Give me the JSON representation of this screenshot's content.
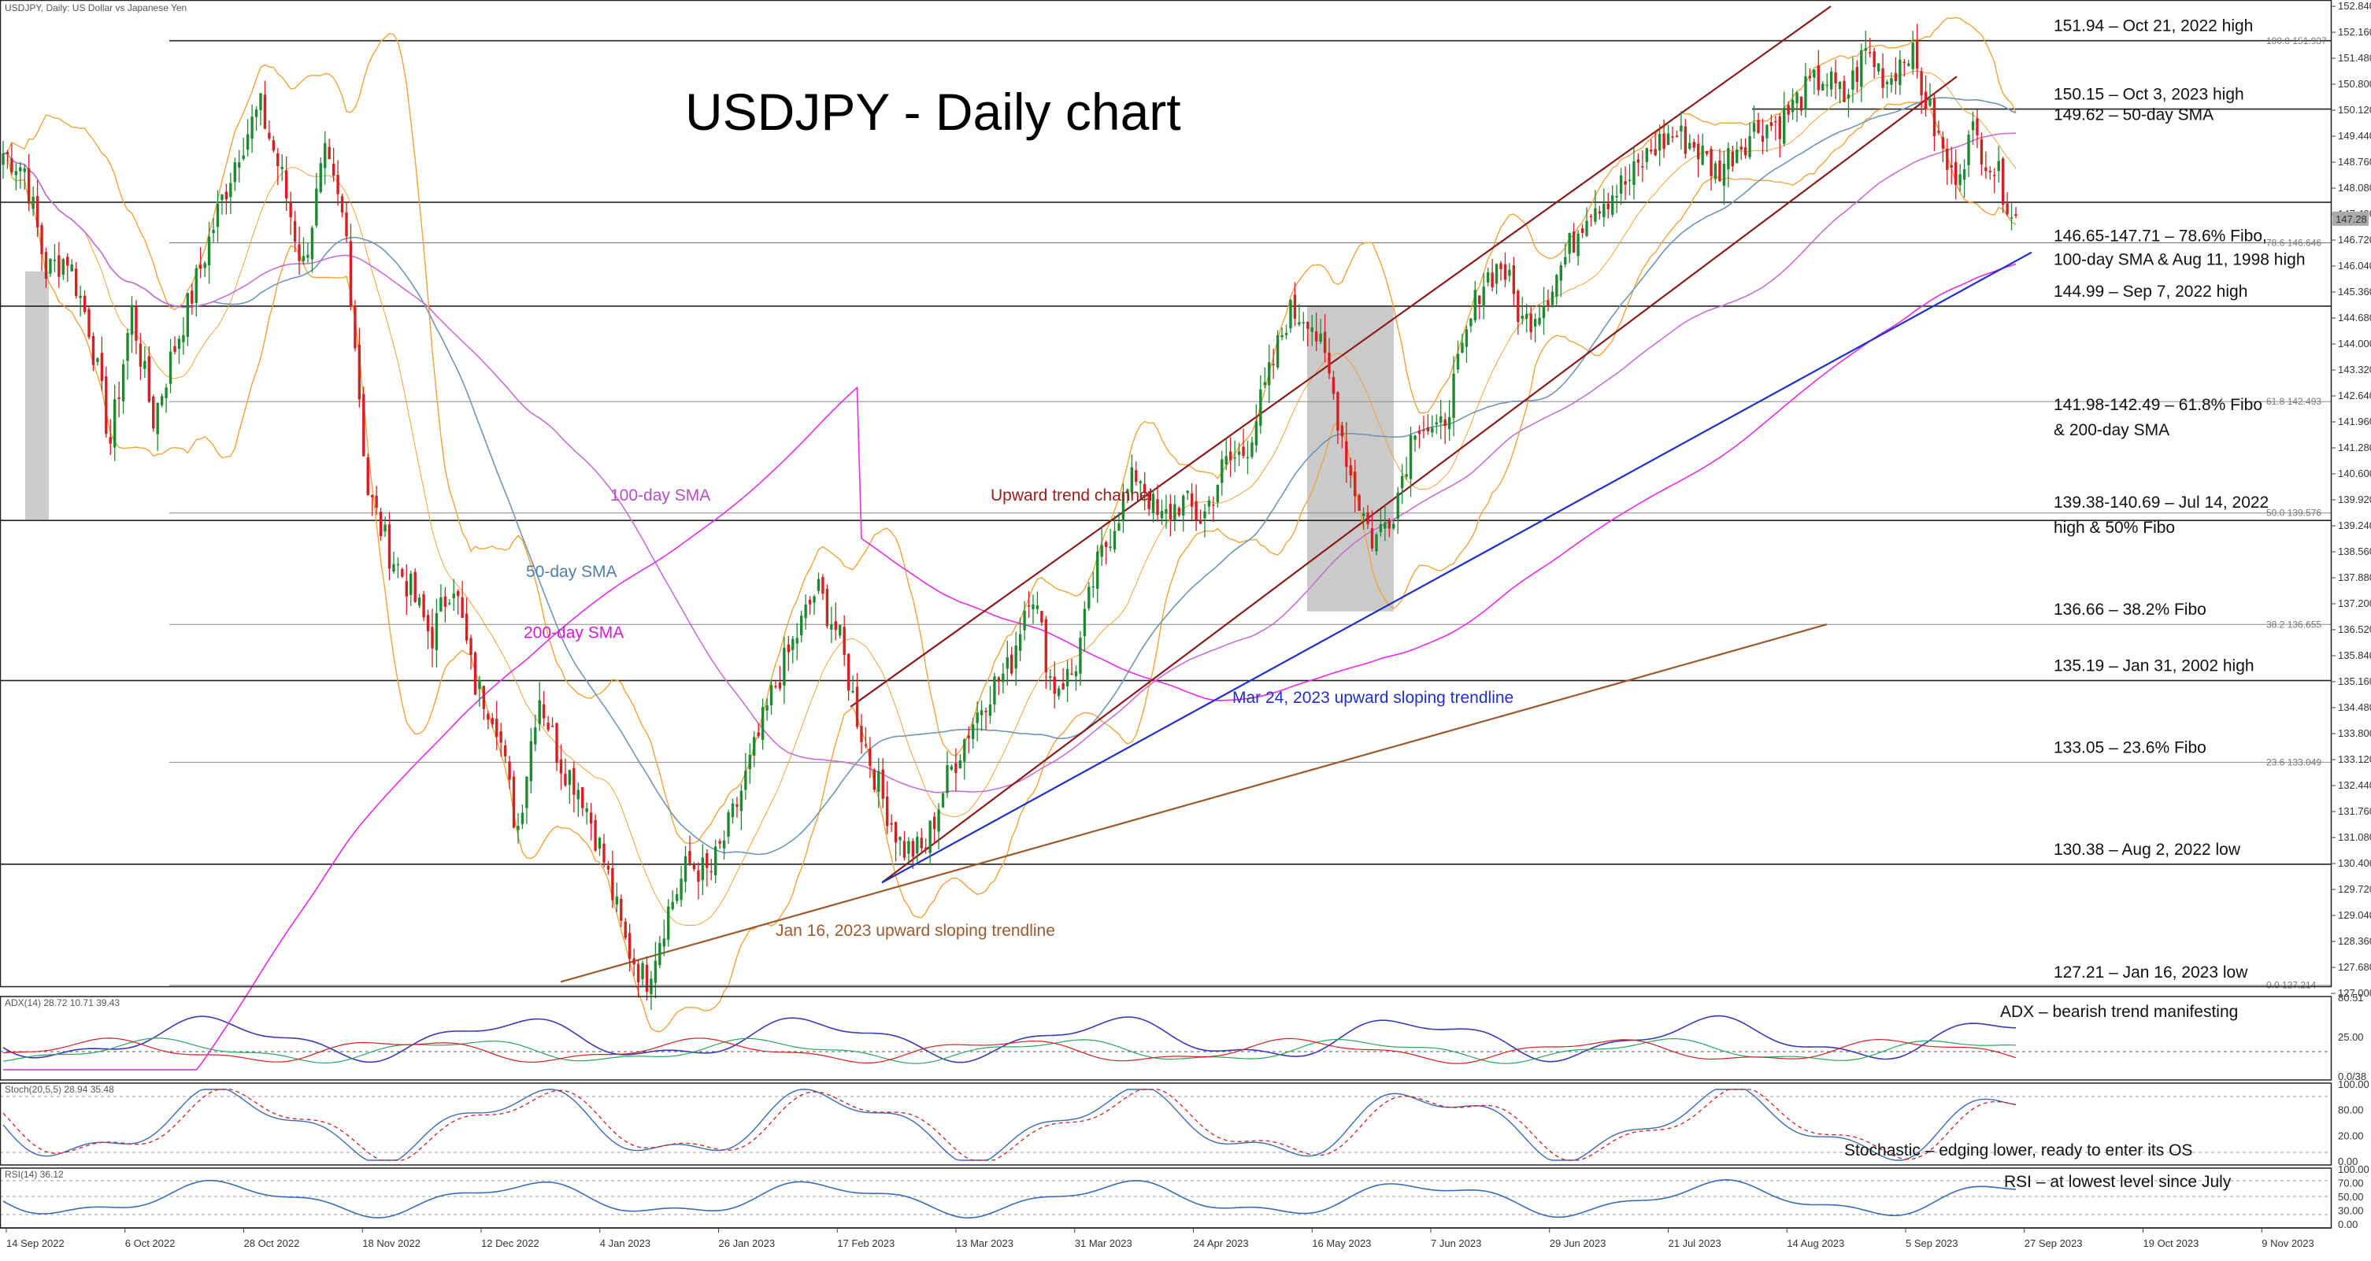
{
  "symbol_label": "USDJPY, Daily:  US Dollar vs Japanese Yen",
  "title": "USDJPY - Daily chart",
  "chart_data": {
    "type": "candlestick",
    "title": "USDJPY - Daily chart",
    "ylim": [
      127.0,
      152.84
    ],
    "y_ticks": [
      "152.840",
      "152.160",
      "151.480",
      "150.800",
      "150.120",
      "149.440",
      "148.760",
      "148.080",
      "147.400",
      "146.720",
      "146.040",
      "145.360",
      "144.680",
      "144.000",
      "143.320",
      "142.640",
      "141.960",
      "141.280",
      "140.600",
      "139.920",
      "139.240",
      "138.560",
      "137.880",
      "137.200",
      "136.520",
      "135.840",
      "135.160",
      "134.480",
      "133.800",
      "133.120",
      "132.440",
      "131.760",
      "131.080",
      "130.400",
      "129.720",
      "129.040",
      "128.360",
      "127.680",
      "127.000"
    ],
    "x_ticks": [
      "14 Sep 2022",
      "6 Oct 2022",
      "28 Oct 2022",
      "18 Nov 2022",
      "12 Dec 2022",
      "4 Jan 2023",
      "26 Jan 2023",
      "17 Feb 2023",
      "13 Mar 2023",
      "31 Mar 2023",
      "24 Apr 2023",
      "16 May 2023",
      "7 Jun 2023",
      "29 Jun 2023",
      "21 Jul 2023",
      "14 Aug 2023",
      "5 Sep 2023",
      "27 Sep 2023",
      "19 Oct 2023",
      "9 Nov 2023"
    ],
    "price_badge": "147.28",
    "key_points": [
      149.0,
      148.6,
      145.9,
      146.3,
      144.5,
      141.4,
      144.9,
      142.0,
      143.9,
      145.6,
      147.4,
      149.1,
      150.2,
      148.4,
      146.0,
      148.9,
      147.0,
      140.2,
      138.6,
      137.6,
      136.3,
      137.9,
      135.1,
      134.3,
      131.2,
      134.9,
      133.1,
      132.3,
      130.6,
      128.4,
      127.3,
      129.1,
      130.4,
      130.1,
      131.5,
      133.2,
      135.0,
      136.3,
      137.6,
      136.4,
      134.0,
      132.2,
      130.8,
      130.7,
      132.5,
      133.8,
      134.9,
      135.5,
      137.8,
      135.0,
      135.4,
      138.0,
      139.5,
      140.7,
      139.3,
      139.9,
      139.4,
      140.8,
      141.2,
      142.9,
      144.8,
      144.8,
      143.0,
      140.4,
      138.8,
      139.8,
      142.1,
      141.5,
      143.4,
      145.6,
      146.1,
      144.5,
      145.2,
      146.3,
      147.6,
      147.9,
      148.3,
      149.1,
      149.5,
      149.2,
      148.5,
      149.2,
      149.7,
      149.8,
      150.5,
      151.0,
      150.4,
      151.7,
      150.9,
      151.8,
      150.0,
      148.3,
      149.5,
      148.6,
      147.3
    ],
    "horizontal_levels": [
      {
        "value": 151.94,
        "label": "151.94 – Oct 21, 2022 high"
      },
      {
        "value": 150.15,
        "label": "150.15 – Oct 3, 2023 high"
      },
      {
        "value": 149.62,
        "label": "149.62 – 50-day SMA"
      },
      {
        "value": 146.65,
        "label": "146.65-147.71 – 78.6% Fibo,"
      },
      {
        "value": 146.65,
        "label": "100-day SMA & Aug 11, 1998 high"
      },
      {
        "value": 144.99,
        "label": "144.99 – Sep 7, 2022 high"
      },
      {
        "value": 141.98,
        "label": "141.98-142.49 – 61.8% Fibo"
      },
      {
        "value": 141.98,
        "label": "& 200-day SMA"
      },
      {
        "value": 139.38,
        "label": "139.38-140.69 – Jul 14, 2022"
      },
      {
        "value": 139.38,
        "label": "high & 50% Fibo"
      },
      {
        "value": 136.66,
        "label": "136.66 – 38.2% Fibo"
      },
      {
        "value": 135.19,
        "label": "135.19 – Jan 31, 2002 high"
      },
      {
        "value": 133.05,
        "label": "133.05 – 23.6% Fibo"
      },
      {
        "value": 130.38,
        "label": "130.38 – Aug 2, 2022 low"
      },
      {
        "value": 127.21,
        "label": "127.21 – Jan 16, 2023 low"
      }
    ],
    "fib_labels": [
      "100.0 151.937",
      "78.6 146.646",
      "61.8 142.493",
      "50.0 139.576",
      "38.2 136.655",
      "23.6 133.049",
      "0.0 127.214"
    ],
    "annotations": [
      "100-day SMA",
      "50-day SMA",
      "200-day SMA",
      "Upward trend channel",
      "Mar 24, 2023 upward sloping trendline",
      "Jan 16, 2023 upward sloping trendline"
    ],
    "colors": {
      "bull": "#1e8a2f",
      "bear": "#d42020",
      "sma50": "#6f95b8",
      "sma100": "#c86fd6",
      "sma200": "#e82be8",
      "bollinger": "#f2a33a",
      "channel": "#8b1a1a",
      "trend_blue": "#1f30c8",
      "trend_brown": "#9c5a2e",
      "shade": "#b8b8b8"
    }
  },
  "indicators": {
    "adx": {
      "header": "ADX(14) 28.72 10.71 39.43",
      "note": "ADX – bearish trend manifesting",
      "ticks": [
        "80.51",
        "25.00",
        "0.0/38"
      ]
    },
    "stoch": {
      "header": "Stoch(20,5,5) 28.94 35.48",
      "note": "Stochastic – edging lower, ready to enter its OS",
      "ticks": [
        "100.00",
        "80.00",
        "20.00",
        "0.00"
      ]
    },
    "rsi": {
      "header": "RSI(14) 36.12",
      "note": "RSI – at lowest level since July",
      "ticks": [
        "100.00",
        "70.00",
        "50.00",
        "30.00",
        "0.00"
      ]
    }
  }
}
